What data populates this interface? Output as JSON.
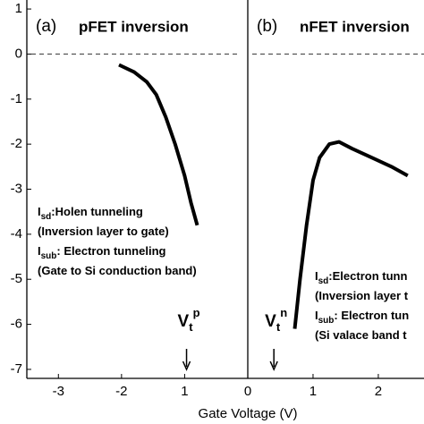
{
  "chart_data": [
    {
      "type": "line",
      "panel": "(a)",
      "title": "pFET inversion",
      "xlim": [
        -3.5,
        0
      ],
      "xticks": [
        -3,
        -2,
        {
          "value": -1,
          "label": "1"
        },
        0
      ],
      "ylim": [
        -7.2,
        1.2
      ],
      "yticks": [
        1,
        0,
        -1,
        -2,
        -3,
        -4,
        -5,
        -6,
        -7
      ],
      "reference_line": 0,
      "x_label": "Gate Voltage (V)",
      "series": [
        {
          "color": "#000000",
          "x": [
            -2.04,
            -1.8,
            -1.6,
            -1.45,
            -1.3,
            -1.15,
            -1.0,
            -0.9,
            -0.8
          ],
          "values": [
            -0.24,
            -0.4,
            -0.62,
            -0.9,
            -1.4,
            -2.0,
            -2.7,
            -3.3,
            -3.8
          ]
        }
      ],
      "annotations": [
        {
          "main": "I",
          "sub": "sd",
          "rest": ":Holen tunneling"
        },
        {
          "main": "(Inversion layer to gate)"
        },
        {
          "main": "I",
          "sub": "sub",
          "rest": ": Electron tunneling"
        },
        {
          "main": "(Gate to Si conduction band)"
        }
      ],
      "threshold": {
        "value": -0.97,
        "base": "V",
        "sub": "t",
        "sup": "p"
      }
    },
    {
      "type": "line",
      "panel": "(b)",
      "title": "nFET inversion",
      "xlim": [
        0,
        2.7
      ],
      "xticks": [
        1,
        2
      ],
      "ylim": [
        -7.2,
        1.2
      ],
      "reference_line": 0,
      "series": [
        {
          "color": "#000000",
          "x": [
            0.72,
            0.8,
            0.9,
            1.0,
            1.1,
            1.25,
            1.4,
            1.6,
            1.9,
            2.2,
            2.45
          ],
          "values": [
            -6.1,
            -5.0,
            -3.8,
            -2.8,
            -2.3,
            -2.0,
            -1.95,
            -2.1,
            -2.3,
            -2.5,
            -2.7
          ]
        }
      ],
      "annotations": [
        {
          "main": "I",
          "sub": "sd",
          "rest": ":Electron tunn"
        },
        {
          "main": "(Inversion layer t"
        },
        {
          "main": "I",
          "sub": "sub",
          "rest": ": Electron tun"
        },
        {
          "main": "(Si valace band t"
        }
      ],
      "threshold": {
        "value": 0.4,
        "base": "V",
        "sub": "t",
        "sup": "n"
      }
    }
  ]
}
